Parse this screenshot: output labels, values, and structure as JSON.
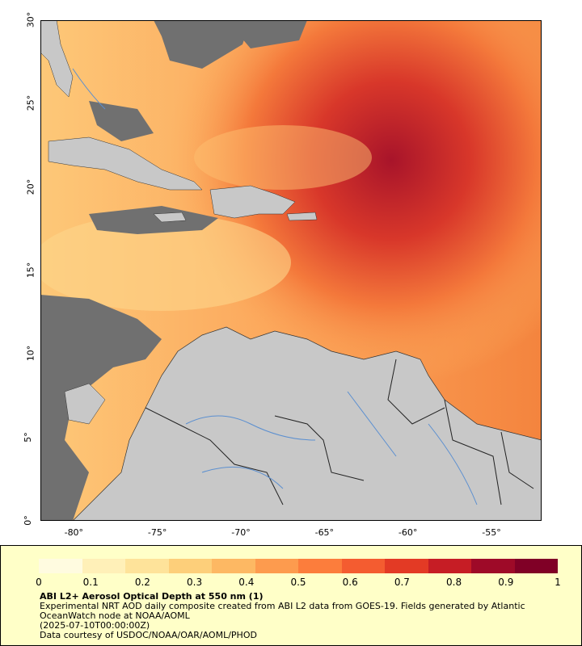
{
  "map": {
    "lat_ticks": [
      "0°",
      "5°",
      "10°",
      "15°",
      "20°",
      "25°",
      "30°"
    ],
    "lon_ticks": [
      "-80°",
      "-75°",
      "-70°",
      "-65°",
      "-60°",
      "-55°"
    ],
    "lat_range": [
      0,
      30
    ],
    "lon_range": [
      -82,
      -52
    ],
    "colors": {
      "land": "#c8c8c8",
      "no_data_ocean": "#707070",
      "river": "#5b8fd0",
      "border": "#333333"
    }
  },
  "legend": {
    "labels": [
      "0",
      "0.1",
      "0.2",
      "0.3",
      "0.4",
      "0.5",
      "0.6",
      "0.7",
      "0.8",
      "0.9",
      "1"
    ],
    "range": [
      0,
      1
    ],
    "colors": [
      "#fffbe0",
      "#fff0b8",
      "#fee39a",
      "#fdcf7a",
      "#fdb863",
      "#fd9b4e",
      "#fc7d3c",
      "#f45c30",
      "#e33a25",
      "#c61d25",
      "#9e0a28",
      "#800026"
    ]
  },
  "caption": {
    "title": "ABI L2+ Aerosol Optical Depth at 550 nm (1)",
    "line1": "Experimental NRT AOD daily composite created from ABI L2 data from GOES-19. Fields generated by Atlantic OceanWatch node at NOAA/AOML",
    "line2": "(2025-07-10T00:00:00Z)",
    "line3": "Data courtesy of USDOC/NOAA/OAR/AOML/PHOD"
  }
}
